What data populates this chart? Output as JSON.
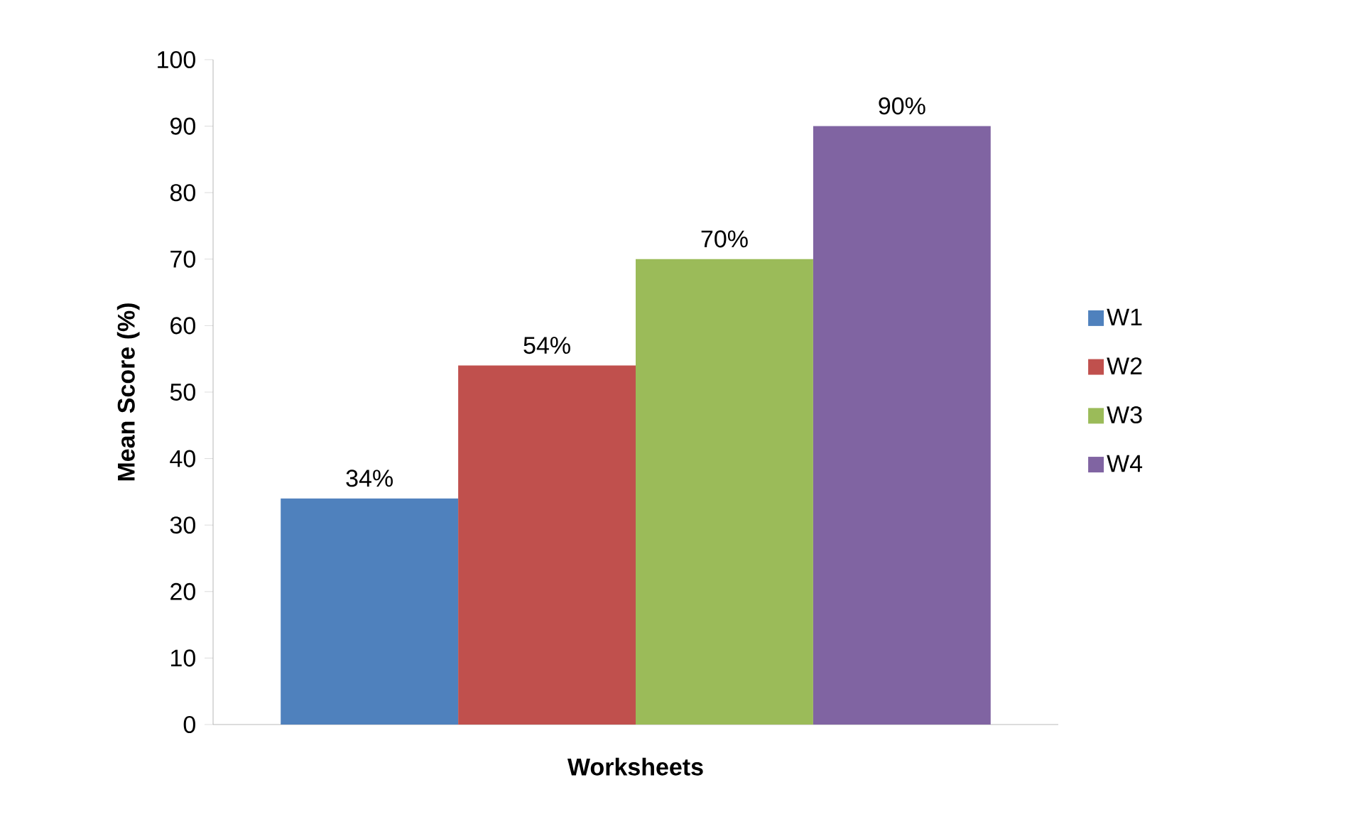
{
  "chart_data": {
    "type": "bar",
    "xlabel": "Worksheets",
    "ylabel": "Mean Score (%)",
    "categories": [
      null
    ],
    "series": [
      {
        "name": "W1",
        "color": "#4f81bd",
        "values": [
          34
        ],
        "value_labels": [
          "34%"
        ]
      },
      {
        "name": "W2",
        "color": "#c0504d",
        "values": [
          54
        ],
        "value_labels": [
          "54%"
        ]
      },
      {
        "name": "W3",
        "color": "#9bbb59",
        "values": [
          70
        ],
        "value_labels": [
          "70%"
        ]
      },
      {
        "name": "W4",
        "color": "#8064a2",
        "values": [
          90
        ],
        "value_labels": [
          "90%"
        ]
      }
    ],
    "ylim": [
      0,
      100
    ],
    "yticks": [
      0,
      10,
      20,
      30,
      40,
      50,
      60,
      70,
      80,
      90,
      100
    ],
    "grid": false,
    "legend": "right"
  }
}
